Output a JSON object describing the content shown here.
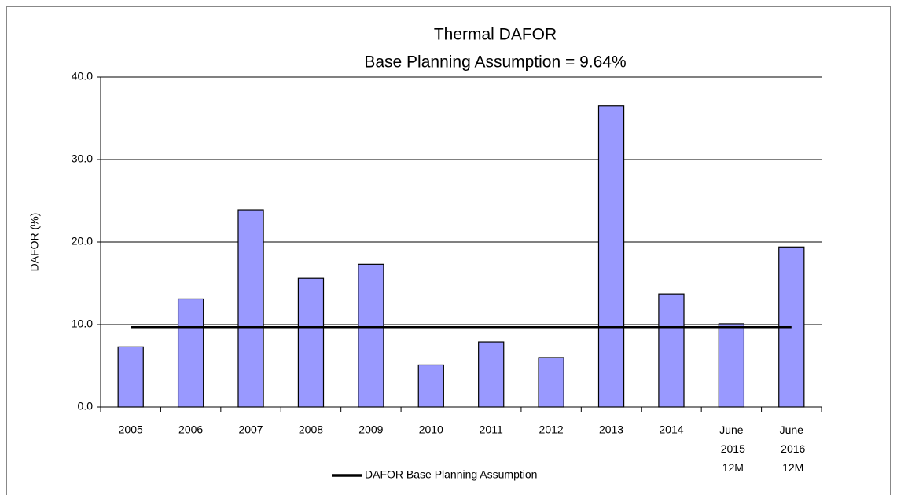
{
  "chart_data": {
    "type": "bar",
    "title": "Thermal DAFOR",
    "subtitle": "Base Planning Assumption = 9.64%",
    "y_label": "DAFOR (%)",
    "categories": [
      "2005",
      "2006",
      "2007",
      "2008",
      "2009",
      "2010",
      "2011",
      "2012",
      "2013",
      "2014",
      "June 2015 12M",
      "June 2016 12M"
    ],
    "series": [
      {
        "type": "bar",
        "color": "#9999ff",
        "values": [
          7.3,
          13.1,
          23.9,
          15.6,
          17.3,
          5.1,
          7.9,
          6.0,
          36.5,
          13.7,
          10.1,
          19.4
        ]
      },
      {
        "type": "line",
        "name": "DAFOR Base Planning Assumption",
        "color": "#000000",
        "values": [
          9.64,
          9.64,
          9.64,
          9.64,
          9.64,
          9.64,
          9.64,
          9.64,
          9.64,
          9.64,
          9.64,
          9.64
        ]
      }
    ],
    "ylim": [
      0,
      40
    ],
    "yticks": [
      {
        "value": 0,
        "label": "0.0"
      },
      {
        "value": 10,
        "label": "10.0"
      },
      {
        "value": 20,
        "label": "20.0"
      },
      {
        "value": 30,
        "label": "30.0"
      },
      {
        "value": 40,
        "label": "40.0"
      }
    ],
    "grid": true,
    "legend": "bottom"
  }
}
